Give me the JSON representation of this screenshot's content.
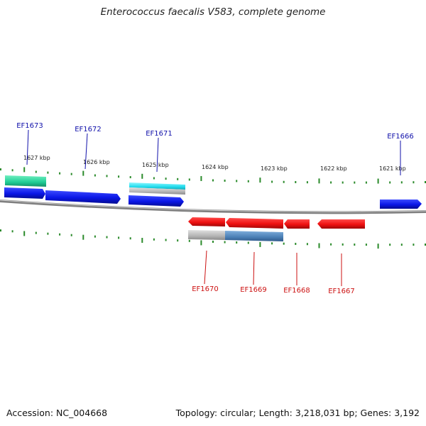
{
  "title": "Enterococcus faecalis V583, complete genome",
  "footer": {
    "accession": "Accession: NC_004668",
    "summary": "Topology: circular; Length: 3,218,031 bp; Genes: 3,192"
  },
  "axis": {
    "tick_labels": [
      "1627 kbp",
      "1626 kbp",
      "1625 kbp",
      "1624 kbp",
      "1623 kbp",
      "1622 kbp",
      "1621 kbp"
    ]
  },
  "colors": {
    "forward": "#0a16e6",
    "reverse": "#ee1111",
    "cyan": "#22dded",
    "teal": "#20cc95",
    "grey": "#b4b4b4",
    "steel": "#4a7fb5",
    "tick": "#2a8a2a",
    "backbone": "#888888",
    "label_forward": "#1010aa",
    "label_reverse": "#cc1111"
  },
  "gene_labels": {
    "forward": [
      "EF1673",
      "EF1672",
      "EF1671",
      "EF1666"
    ],
    "reverse": [
      "EF1670",
      "EF1669",
      "EF1668",
      "EF1667"
    ]
  }
}
